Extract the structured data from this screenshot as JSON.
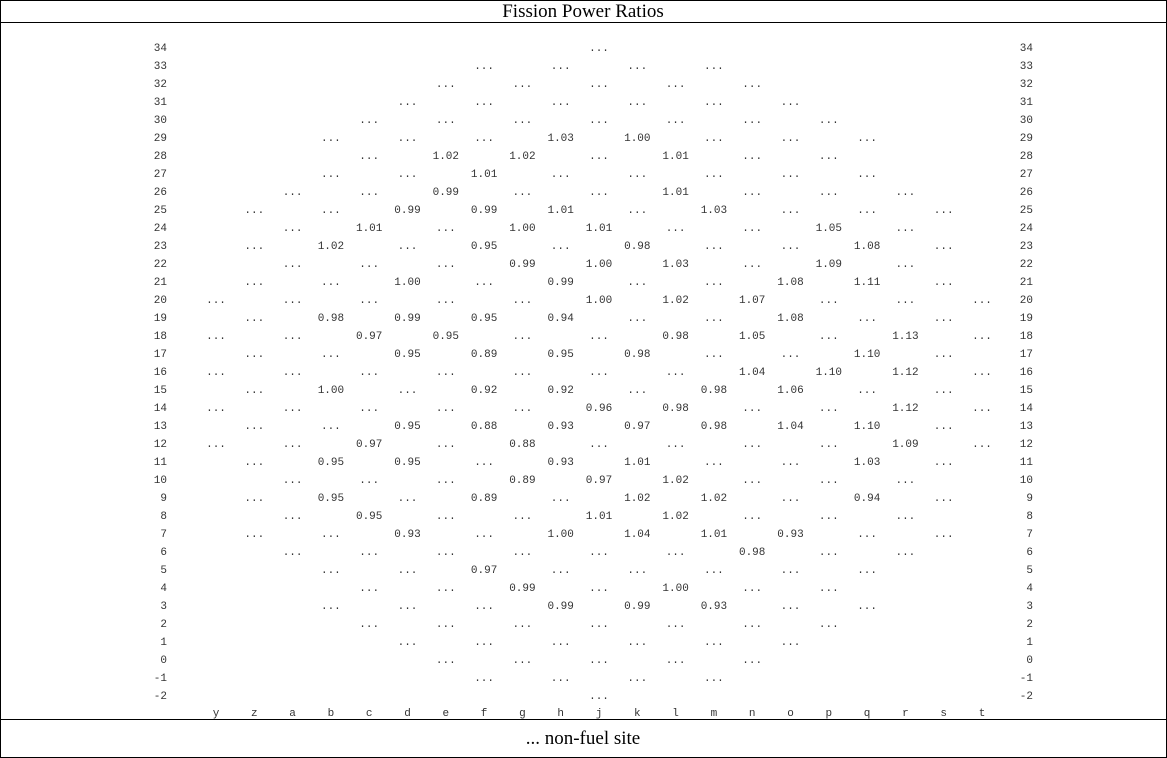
{
  "title": "Fission Power Ratios",
  "footer": "... non-fuel site",
  "grid": {
    "columns": [
      "y",
      "z",
      "a",
      "b",
      "c",
      "d",
      "e",
      "f",
      "g",
      "h",
      "j",
      "k",
      "l",
      "m",
      "n",
      "o",
      "p",
      "q",
      "r",
      "s",
      "t"
    ],
    "rows": [
      {
        "label": "34",
        "cells": [
          null,
          null,
          null,
          null,
          null,
          null,
          null,
          null,
          null,
          null,
          "...",
          null,
          null,
          null,
          null,
          null,
          null,
          null,
          null,
          null,
          null
        ]
      },
      {
        "label": "33",
        "cells": [
          null,
          null,
          null,
          null,
          null,
          null,
          null,
          "...",
          null,
          "...",
          null,
          "...",
          null,
          "...",
          null,
          null,
          null,
          null,
          null,
          null,
          null
        ]
      },
      {
        "label": "32",
        "cells": [
          null,
          null,
          null,
          null,
          null,
          null,
          "...",
          null,
          "...",
          null,
          "...",
          null,
          "...",
          null,
          "...",
          null,
          null,
          null,
          null,
          null,
          null
        ]
      },
      {
        "label": "31",
        "cells": [
          null,
          null,
          null,
          null,
          null,
          "...",
          null,
          "...",
          null,
          "...",
          null,
          "...",
          null,
          "...",
          null,
          "...",
          null,
          null,
          null,
          null,
          null
        ]
      },
      {
        "label": "30",
        "cells": [
          null,
          null,
          null,
          null,
          "...",
          null,
          "...",
          null,
          "...",
          null,
          "...",
          null,
          "...",
          null,
          "...",
          null,
          "...",
          null,
          null,
          null,
          null
        ]
      },
      {
        "label": "29",
        "cells": [
          null,
          null,
          null,
          "...",
          null,
          "...",
          null,
          "...",
          null,
          "1.03",
          null,
          "1.00",
          null,
          "...",
          null,
          "...",
          null,
          "...",
          null,
          null,
          null
        ]
      },
      {
        "label": "28",
        "cells": [
          null,
          null,
          null,
          null,
          "...",
          null,
          "1.02",
          null,
          "1.02",
          null,
          "...",
          null,
          "1.01",
          null,
          "...",
          null,
          "...",
          null,
          null,
          null,
          null
        ]
      },
      {
        "label": "27",
        "cells": [
          null,
          null,
          null,
          "...",
          null,
          "...",
          null,
          "1.01",
          null,
          "...",
          null,
          "...",
          null,
          "...",
          null,
          "...",
          null,
          "...",
          null,
          null,
          null
        ]
      },
      {
        "label": "26",
        "cells": [
          null,
          null,
          "...",
          null,
          "...",
          null,
          "0.99",
          null,
          "...",
          null,
          "...",
          null,
          "1.01",
          null,
          "...",
          null,
          "...",
          null,
          "...",
          null,
          null
        ]
      },
      {
        "label": "25",
        "cells": [
          null,
          "...",
          null,
          "...",
          null,
          "0.99",
          null,
          "0.99",
          null,
          "1.01",
          null,
          "...",
          null,
          "1.03",
          null,
          "...",
          null,
          "...",
          null,
          "...",
          null
        ]
      },
      {
        "label": "24",
        "cells": [
          null,
          null,
          "...",
          null,
          "1.01",
          null,
          "...",
          null,
          "1.00",
          null,
          "1.01",
          null,
          "...",
          null,
          "...",
          null,
          "1.05",
          null,
          "...",
          null,
          null
        ]
      },
      {
        "label": "23",
        "cells": [
          null,
          "...",
          null,
          "1.02",
          null,
          "...",
          null,
          "0.95",
          null,
          "...",
          null,
          "0.98",
          null,
          "...",
          null,
          "...",
          null,
          "1.08",
          null,
          "...",
          null
        ]
      },
      {
        "label": "22",
        "cells": [
          null,
          null,
          "...",
          null,
          "...",
          null,
          "...",
          null,
          "0.99",
          null,
          "1.00",
          null,
          "1.03",
          null,
          "...",
          null,
          "1.09",
          null,
          "...",
          null,
          null
        ]
      },
      {
        "label": "21",
        "cells": [
          null,
          "...",
          null,
          "...",
          null,
          "1.00",
          null,
          "...",
          null,
          "0.99",
          null,
          "...",
          null,
          "...",
          null,
          "1.08",
          null,
          "1.11",
          null,
          "...",
          null
        ]
      },
      {
        "label": "20",
        "cells": [
          "...",
          null,
          "...",
          null,
          "...",
          null,
          "...",
          null,
          "...",
          null,
          "1.00",
          null,
          "1.02",
          null,
          "1.07",
          null,
          "...",
          null,
          "...",
          null,
          "..."
        ]
      },
      {
        "label": "19",
        "cells": [
          null,
          "...",
          null,
          "0.98",
          null,
          "0.99",
          null,
          "0.95",
          null,
          "0.94",
          null,
          "...",
          null,
          "...",
          null,
          "1.08",
          null,
          "...",
          null,
          "...",
          null
        ]
      },
      {
        "label": "18",
        "cells": [
          "...",
          null,
          "...",
          null,
          "0.97",
          null,
          "0.95",
          null,
          "...",
          null,
          "...",
          null,
          "0.98",
          null,
          "1.05",
          null,
          "...",
          null,
          "1.13",
          null,
          "..."
        ]
      },
      {
        "label": "17",
        "cells": [
          null,
          "...",
          null,
          "...",
          null,
          "0.95",
          null,
          "0.89",
          null,
          "0.95",
          null,
          "0.98",
          null,
          "...",
          null,
          "...",
          null,
          "1.10",
          null,
          "...",
          null
        ]
      },
      {
        "label": "16",
        "cells": [
          "...",
          null,
          "...",
          null,
          "...",
          null,
          "...",
          null,
          "...",
          null,
          "...",
          null,
          "...",
          null,
          "1.04",
          null,
          "1.10",
          null,
          "1.12",
          null,
          "..."
        ]
      },
      {
        "label": "15",
        "cells": [
          null,
          "...",
          null,
          "1.00",
          null,
          "...",
          null,
          "0.92",
          null,
          "0.92",
          null,
          "...",
          null,
          "0.98",
          null,
          "1.06",
          null,
          "...",
          null,
          "...",
          null
        ]
      },
      {
        "label": "14",
        "cells": [
          "...",
          null,
          "...",
          null,
          "...",
          null,
          "...",
          null,
          "...",
          null,
          "0.96",
          null,
          "0.98",
          null,
          "...",
          null,
          "...",
          null,
          "1.12",
          null,
          "..."
        ]
      },
      {
        "label": "13",
        "cells": [
          null,
          "...",
          null,
          "...",
          null,
          "0.95",
          null,
          "0.88",
          null,
          "0.93",
          null,
          "0.97",
          null,
          "0.98",
          null,
          "1.04",
          null,
          "1.10",
          null,
          "...",
          null
        ]
      },
      {
        "label": "12",
        "cells": [
          "...",
          null,
          "...",
          null,
          "0.97",
          null,
          "...",
          null,
          "0.88",
          null,
          "...",
          null,
          "...",
          null,
          "...",
          null,
          "...",
          null,
          "1.09",
          null,
          "..."
        ]
      },
      {
        "label": "11",
        "cells": [
          null,
          "...",
          null,
          "0.95",
          null,
          "0.95",
          null,
          "...",
          null,
          "0.93",
          null,
          "1.01",
          null,
          "...",
          null,
          "...",
          null,
          "1.03",
          null,
          "...",
          null
        ]
      },
      {
        "label": "10",
        "cells": [
          null,
          null,
          "...",
          null,
          "...",
          null,
          "...",
          null,
          "0.89",
          null,
          "0.97",
          null,
          "1.02",
          null,
          "...",
          null,
          "...",
          null,
          "...",
          null,
          null
        ]
      },
      {
        "label": "9",
        "cells": [
          null,
          "...",
          null,
          "0.95",
          null,
          "...",
          null,
          "0.89",
          null,
          "...",
          null,
          "1.02",
          null,
          "1.02",
          null,
          "...",
          null,
          "0.94",
          null,
          "...",
          null
        ]
      },
      {
        "label": "8",
        "cells": [
          null,
          null,
          "...",
          null,
          "0.95",
          null,
          "...",
          null,
          "...",
          null,
          "1.01",
          null,
          "1.02",
          null,
          "...",
          null,
          "...",
          null,
          "...",
          null,
          null
        ]
      },
      {
        "label": "7",
        "cells": [
          null,
          "...",
          null,
          "...",
          null,
          "0.93",
          null,
          "...",
          null,
          "1.00",
          null,
          "1.04",
          null,
          "1.01",
          null,
          "0.93",
          null,
          "...",
          null,
          "...",
          null
        ]
      },
      {
        "label": "6",
        "cells": [
          null,
          null,
          "...",
          null,
          "...",
          null,
          "...",
          null,
          "...",
          null,
          "...",
          null,
          "...",
          null,
          "0.98",
          null,
          "...",
          null,
          "...",
          null,
          null
        ]
      },
      {
        "label": "5",
        "cells": [
          null,
          null,
          null,
          "...",
          null,
          "...",
          null,
          "0.97",
          null,
          "...",
          null,
          "...",
          null,
          "...",
          null,
          "...",
          null,
          "...",
          null,
          null,
          null
        ]
      },
      {
        "label": "4",
        "cells": [
          null,
          null,
          null,
          null,
          "...",
          null,
          "...",
          null,
          "0.99",
          null,
          "...",
          null,
          "1.00",
          null,
          "...",
          null,
          "...",
          null,
          null,
          null,
          null
        ]
      },
      {
        "label": "3",
        "cells": [
          null,
          null,
          null,
          "...",
          null,
          "...",
          null,
          "...",
          null,
          "0.99",
          null,
          "0.99",
          null,
          "0.93",
          null,
          "...",
          null,
          "...",
          null,
          null,
          null
        ]
      },
      {
        "label": "2",
        "cells": [
          null,
          null,
          null,
          null,
          "...",
          null,
          "...",
          null,
          "...",
          null,
          "...",
          null,
          "...",
          null,
          "...",
          null,
          "...",
          null,
          null,
          null,
          null
        ]
      },
      {
        "label": "1",
        "cells": [
          null,
          null,
          null,
          null,
          null,
          "...",
          null,
          "...",
          null,
          "...",
          null,
          "...",
          null,
          "...",
          null,
          "...",
          null,
          null,
          null,
          null,
          null
        ]
      },
      {
        "label": "0",
        "cells": [
          null,
          null,
          null,
          null,
          null,
          null,
          "...",
          null,
          "...",
          null,
          "...",
          null,
          "...",
          null,
          "...",
          null,
          null,
          null,
          null,
          null,
          null
        ]
      },
      {
        "label": "-1",
        "cells": [
          null,
          null,
          null,
          null,
          null,
          null,
          null,
          "...",
          null,
          "...",
          null,
          "...",
          null,
          "...",
          null,
          null,
          null,
          null,
          null,
          null,
          null
        ]
      },
      {
        "label": "-2",
        "cells": [
          null,
          null,
          null,
          null,
          null,
          null,
          null,
          null,
          null,
          null,
          "...",
          null,
          null,
          null,
          null,
          null,
          null,
          null,
          null,
          null,
          null
        ]
      }
    ]
  }
}
